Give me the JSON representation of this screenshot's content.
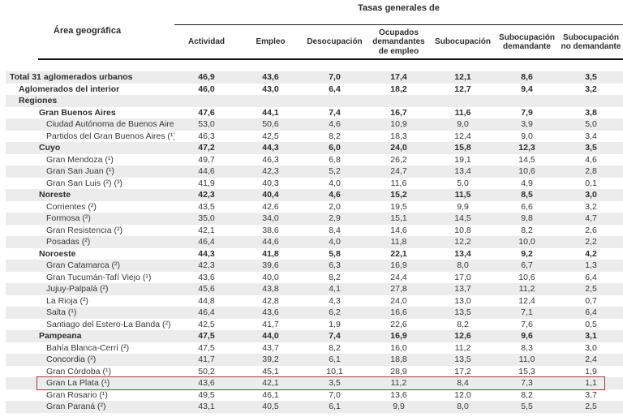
{
  "table": {
    "group_header": "Tasas generales de",
    "area_header": "Área geográfica",
    "columns": [
      "Actividad",
      "Empleo",
      "Desocupación",
      "Ocupados demandantes de empleo",
      "Subocupación",
      "Subocupación demandante",
      "Subocupación no demandante"
    ],
    "rows": [
      {
        "label": "Total 31 aglomerados urbanos",
        "level": 0,
        "bold": true,
        "highlighted": false,
        "values": [
          "46,9",
          "43,6",
          "7,0",
          "17,4",
          "12,1",
          "8,6",
          "3,5"
        ]
      },
      {
        "label": "Aglomerados del interior",
        "level": 1,
        "bold": true,
        "highlighted": false,
        "values": [
          "46,0",
          "43,0",
          "6,4",
          "18,2",
          "12,7",
          "9,4",
          "3,2"
        ]
      },
      {
        "label": "Regiones",
        "level": 1,
        "bold": true,
        "highlighted": false,
        "values": [
          "",
          "",
          "",
          "",
          "",
          "",
          ""
        ]
      },
      {
        "label": "Gran Buenos Aires",
        "level": 2,
        "bold": true,
        "highlighted": false,
        "values": [
          "47,6",
          "44,1",
          "7,4",
          "16,7",
          "11,6",
          "7,9",
          "3,8"
        ]
      },
      {
        "label": "Ciudad Autónoma de Buenos Aires (¹)",
        "level": 3,
        "bold": false,
        "highlighted": false,
        "values": [
          "53,0",
          "50,6",
          "4,6",
          "10,9",
          "9,0",
          "3,9",
          "5,0"
        ]
      },
      {
        "label": "Partidos del Gran Buenos Aires (¹)",
        "level": 3,
        "bold": false,
        "highlighted": false,
        "values": [
          "46,3",
          "42,5",
          "8,2",
          "18,3",
          "12,4",
          "9,0",
          "3,4"
        ]
      },
      {
        "label": "Cuyo",
        "level": 2,
        "bold": true,
        "highlighted": false,
        "values": [
          "47,2",
          "44,3",
          "6,0",
          "24,0",
          "15,8",
          "12,3",
          "3,5"
        ]
      },
      {
        "label": "Gran Mendoza (¹)",
        "level": 3,
        "bold": false,
        "highlighted": false,
        "values": [
          "49,7",
          "46,3",
          "6,8",
          "26,2",
          "19,1",
          "14,5",
          "4,6"
        ]
      },
      {
        "label": "Gran San Juan (¹)",
        "level": 3,
        "bold": false,
        "highlighted": false,
        "values": [
          "44,6",
          "42,3",
          "5,2",
          "24,7",
          "13,4",
          "10,6",
          "2,8"
        ]
      },
      {
        "label": "Gran San Luis (²) (³)",
        "level": 3,
        "bold": false,
        "highlighted": false,
        "values": [
          "41,9",
          "40,3",
          "4,0",
          "11,6",
          "5,0",
          "4,9",
          "0,1"
        ]
      },
      {
        "label": "Noreste",
        "level": 2,
        "bold": true,
        "highlighted": false,
        "values": [
          "42,3",
          "40,4",
          "4,6",
          "15,2",
          "11,5",
          "8,5",
          "3,0"
        ]
      },
      {
        "label": "Corrientes (²)",
        "level": 3,
        "bold": false,
        "highlighted": false,
        "values": [
          "43,5",
          "42,6",
          "2,0",
          "19,5",
          "9,9",
          "6,6",
          "3,2"
        ]
      },
      {
        "label": "Formosa (²)",
        "level": 3,
        "bold": false,
        "highlighted": false,
        "values": [
          "35,0",
          "34,0",
          "2,9",
          "15,1",
          "14,5",
          "9,8",
          "4,7"
        ]
      },
      {
        "label": "Gran Resistencia (²)",
        "level": 3,
        "bold": false,
        "highlighted": false,
        "values": [
          "42,1",
          "38,6",
          "8,4",
          "14,6",
          "10,8",
          "8,2",
          "2,6"
        ]
      },
      {
        "label": "Posadas (²)",
        "level": 3,
        "bold": false,
        "highlighted": false,
        "values": [
          "46,4",
          "44,6",
          "4,0",
          "11,8",
          "12,2",
          "10,0",
          "2,2"
        ]
      },
      {
        "label": "Noroeste",
        "level": 2,
        "bold": true,
        "highlighted": false,
        "values": [
          "44,3",
          "41,8",
          "5,8",
          "22,1",
          "13,4",
          "9,2",
          "4,2"
        ]
      },
      {
        "label": "Gran Catamarca (²)",
        "level": 3,
        "bold": false,
        "highlighted": false,
        "values": [
          "42,3",
          "39,6",
          "6,3",
          "16,9",
          "8,0",
          "6,7",
          "1,3"
        ]
      },
      {
        "label": "Gran Tucumán-Tafí Viejo (¹)",
        "level": 3,
        "bold": false,
        "highlighted": false,
        "values": [
          "43,6",
          "40,0",
          "8,2",
          "24,4",
          "17,0",
          "10,6",
          "6,4"
        ]
      },
      {
        "label": "Jujuy-Palpalá (²)",
        "level": 3,
        "bold": false,
        "highlighted": false,
        "values": [
          "45,6",
          "43,8",
          "4,1",
          "27,8",
          "13,7",
          "11,2",
          "2,5"
        ]
      },
      {
        "label": "La Rioja (²)",
        "level": 3,
        "bold": false,
        "highlighted": false,
        "values": [
          "44,8",
          "42,8",
          "4,3",
          "24,0",
          "13,0",
          "12,4",
          "0,7"
        ]
      },
      {
        "label": "Salta (¹)",
        "level": 3,
        "bold": false,
        "highlighted": false,
        "values": [
          "46,4",
          "43,6",
          "6,2",
          "16,6",
          "13,5",
          "7,1",
          "6,4"
        ]
      },
      {
        "label": "Santiago del Estero-La Banda (²)",
        "level": 3,
        "bold": false,
        "highlighted": false,
        "values": [
          "42,5",
          "41,7",
          "1,9",
          "22,6",
          "8,2",
          "7,6",
          "0,5"
        ]
      },
      {
        "label": "Pampeana",
        "level": 2,
        "bold": true,
        "highlighted": false,
        "values": [
          "47,5",
          "44,0",
          "7,4",
          "16,9",
          "12,6",
          "9,6",
          "3,1"
        ]
      },
      {
        "label": "Bahía Blanca-Cerri (²)",
        "level": 3,
        "bold": false,
        "highlighted": false,
        "values": [
          "47,5",
          "43,7",
          "8,2",
          "16,0",
          "11,2",
          "8,3",
          "3,0"
        ]
      },
      {
        "label": "Concordia (²)",
        "level": 3,
        "bold": false,
        "highlighted": false,
        "values": [
          "41,7",
          "39,2",
          "6,1",
          "18,8",
          "13,5",
          "11,0",
          "2,4"
        ]
      },
      {
        "label": "Gran Córdoba (¹)",
        "level": 3,
        "bold": false,
        "highlighted": false,
        "values": [
          "50,2",
          "45,1",
          "10,1",
          "28,9",
          "17,2",
          "15,3",
          "1,9"
        ]
      },
      {
        "label": "Gran La Plata (¹)",
        "level": 3,
        "bold": false,
        "highlighted": true,
        "values": [
          "43,6",
          "42,1",
          "3,5",
          "11,2",
          "8,4",
          "7,3",
          "1,1"
        ]
      },
      {
        "label": "Gran Rosario (¹)",
        "level": 3,
        "bold": false,
        "highlighted": false,
        "values": [
          "49,5",
          "46,1",
          "7,0",
          "13,6",
          "12,0",
          "8,2",
          "3,7"
        ]
      },
      {
        "label": "Gran Paraná (²)",
        "level": 3,
        "bold": false,
        "highlighted": false,
        "values": [
          "43,1",
          "40,5",
          "6,1",
          "9,9",
          "8,0",
          "5,5",
          "2,5"
        ]
      }
    ]
  },
  "colors": {
    "stripe": "#ececec",
    "highlight_border": "#a03b3c",
    "rule": "#111111",
    "text": "#383838"
  }
}
